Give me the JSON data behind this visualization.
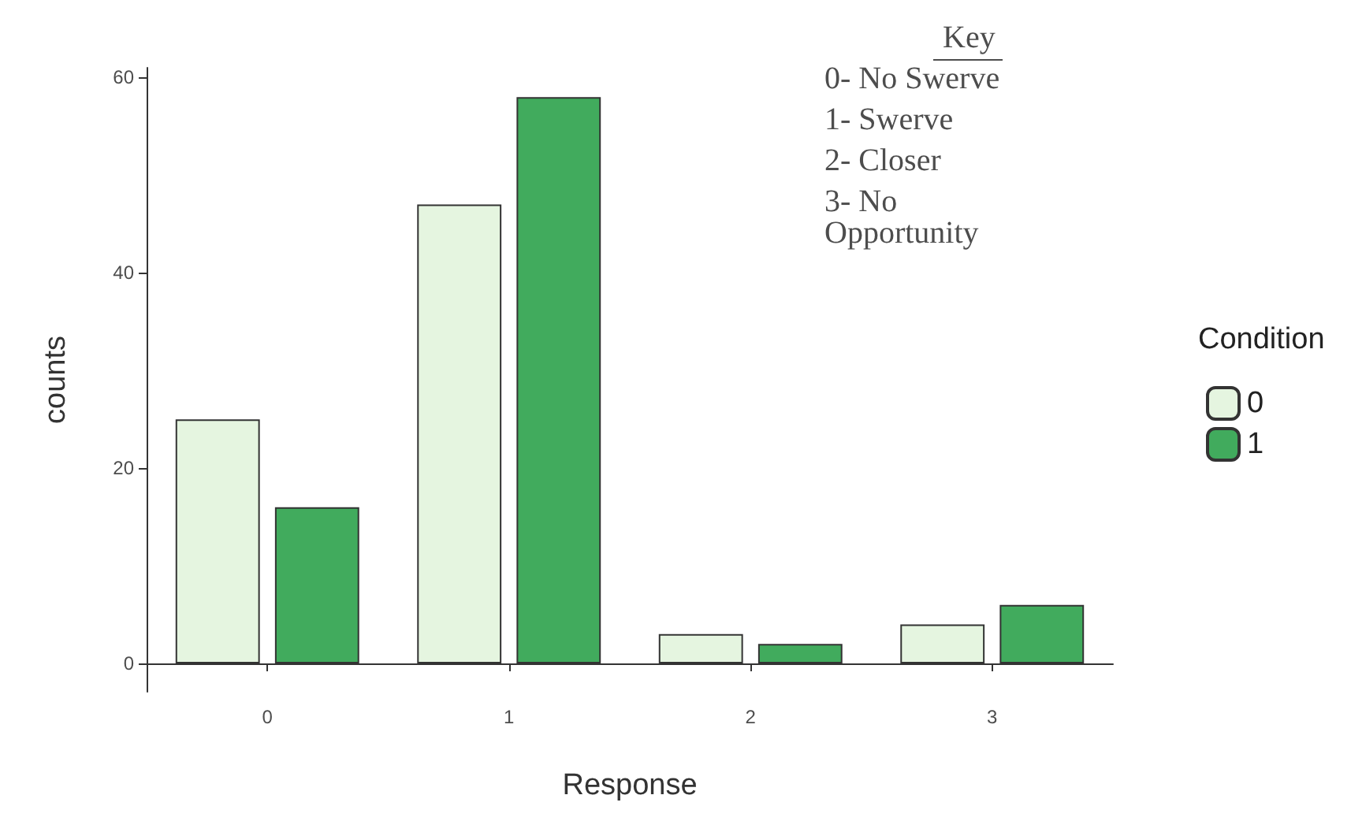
{
  "chart_data": {
    "type": "bar",
    "xlabel": "Response",
    "ylabel": "counts",
    "legend_title": "Condition",
    "categories": [
      "0",
      "1",
      "2",
      "3"
    ],
    "series": [
      {
        "name": "0",
        "color": "#e5f5e0",
        "values": [
          25,
          47,
          3,
          4
        ]
      },
      {
        "name": "1",
        "color": "#41ab5d",
        "values": [
          16,
          58,
          2,
          6
        ]
      }
    ],
    "ylim": [
      -2.9,
      61
    ],
    "yticks": [
      0,
      20,
      40,
      60
    ],
    "grid": false,
    "legend": "right",
    "annotations": [
      "Key",
      "0- No Swerve",
      "1- Swerve",
      "2- Closer",
      "3- No Opportunity"
    ]
  }
}
